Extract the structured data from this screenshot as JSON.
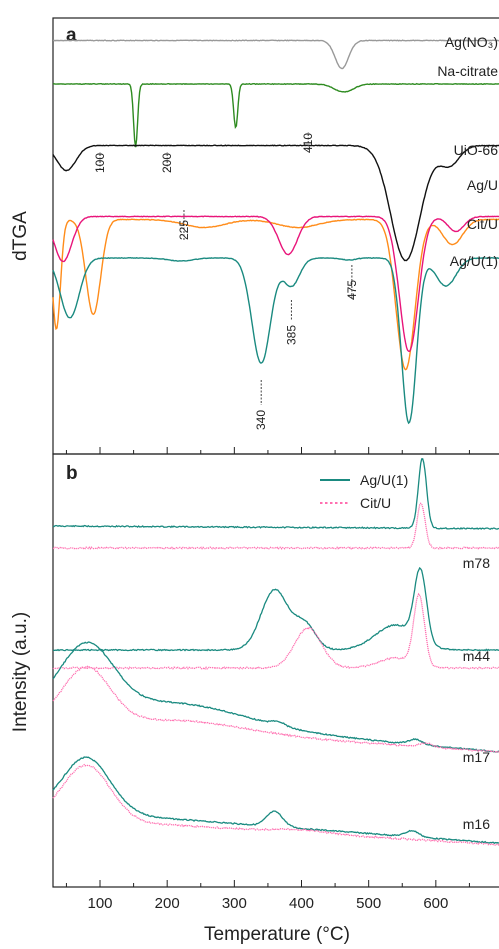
{
  "chart_data": [
    {
      "panel": "a",
      "type": "line",
      "ylabel": "dTGA",
      "xlabel": "",
      "xlim": [
        30,
        700
      ],
      "grid": false,
      "series": [
        {
          "name": "Ag(NO₃)",
          "color": "#999999",
          "baseline": 0.5,
          "peaks": [
            [
              460,
              10,
              28
            ]
          ]
        },
        {
          "name": "Na-citrate",
          "color": "#2e8b20",
          "baseline": 1.0,
          "peaks": [
            [
              153,
              3,
              63
            ],
            [
              302,
              3,
              44
            ],
            [
              463,
              14,
              8
            ]
          ]
        },
        {
          "name": "UiO-66",
          "color": "#111111",
          "baseline": -2.5,
          "peaks": [
            [
              50,
              14,
              25
            ],
            [
              555,
              22,
              115
            ],
            [
              620,
              15,
              20
            ]
          ]
        },
        {
          "name": "Ag/U",
          "color": "#ff8c1a",
          "baseline": -7.5,
          "peaks": [
            [
              35,
              6,
              110
            ],
            [
              90,
              11,
              95
            ],
            [
              255,
              30,
              8
            ],
            [
              395,
              30,
              8
            ],
            [
              555,
              14,
              150
            ],
            [
              625,
              15,
              25
            ]
          ]
        },
        {
          "name": "Cit/U",
          "color": "#e8157a",
          "baseline": -3.5,
          "peaks": [
            [
              45,
              13,
              45
            ],
            [
              380,
              14,
              38
            ],
            [
              560,
              14,
              135
            ],
            [
              630,
              12,
              15
            ]
          ]
        },
        {
          "name": "Ag/U(1)",
          "color": "#1a8a80",
          "baseline": -5.0,
          "peaks": [
            [
              55,
              14,
              60
            ],
            [
              220,
              18,
              3
            ],
            [
              340,
              14,
              105
            ],
            [
              385,
              12,
              28
            ],
            [
              470,
              10,
              2
            ],
            [
              560,
              11,
              165
            ],
            [
              615,
              15,
              28
            ]
          ]
        }
      ],
      "annotations": [
        {
          "text": "100",
          "x": 100
        },
        {
          "text": "200",
          "x": 200
        },
        {
          "text": "410",
          "x": 410
        },
        {
          "text": "225",
          "x": 225
        },
        {
          "text": "385",
          "x": 385
        },
        {
          "text": "475",
          "x": 475
        },
        {
          "text": "340",
          "x": 340
        }
      ]
    },
    {
      "panel": "b",
      "type": "line",
      "ylabel": "Intensity (a.u.)",
      "xlabel": "Temperature (°C)",
      "xlim": [
        30,
        700
      ],
      "x_ticks": [
        100,
        200,
        300,
        400,
        500,
        600
      ],
      "grid": false,
      "legend": {
        "position": "top-right",
        "entries": [
          "Ag/U(1)",
          "Cit/U"
        ]
      },
      "series_styles": {
        "Ag/U(1)": {
          "color": "#1a8a80",
          "dash": "solid"
        },
        "Cit/U": {
          "color": "#ff6fb0",
          "dash": "dotted"
        }
      },
      "groups": [
        {
          "label": "m78",
          "traces": [
            {
              "name": "Ag/U(1)",
              "baseline": 0,
              "slope": -0.004,
              "peaks": [
                [
                  580,
                  6,
                  70
                ]
              ]
            },
            {
              "name": "Cit/U",
              "baseline": 0,
              "slope": 0,
              "peaks": [
                [
                  578,
                  6,
                  45
                ]
              ]
            }
          ]
        },
        {
          "label": "m44",
          "traces": [
            {
              "name": "Ag/U(1)",
              "baseline": 0,
              "slope": 0,
              "peaks": [
                [
                  360,
                  20,
                  60
                ],
                [
                  405,
                  16,
                  25
                ],
                [
                  540,
                  30,
                  25
                ],
                [
                  577,
                  9,
                  70
                ]
              ]
            },
            {
              "name": "Cit/U",
              "baseline": 0,
              "slope": 0,
              "peaks": [
                [
                  410,
                  20,
                  40
                ],
                [
                  540,
                  25,
                  10
                ],
                [
                  575,
                  8,
                  70
                ]
              ]
            }
          ]
        },
        {
          "label": "m17",
          "traces": [
            {
              "name": "Ag/U(1)",
              "baseline": 0,
              "slope": -0.06,
              "peaks": [
                [
                  80,
                  40,
                  65
                ],
                [
                  220,
                  100,
                  20
                ],
                [
                  365,
                  10,
                  4
                ],
                [
                  570,
                  10,
                  5
                ]
              ]
            },
            {
              "name": "Cit/U",
              "baseline": 0,
              "slope": -0.045,
              "peaks": [
                [
                  80,
                  35,
                  55
                ],
                [
                  230,
                  90,
                  10
                ],
                [
                  585,
                  10,
                  4
                ]
              ]
            }
          ]
        },
        {
          "label": "m16",
          "traces": [
            {
              "name": "Ag/U(1)",
              "baseline": 0,
              "slope": -0.05,
              "peaks": [
                [
                  80,
                  35,
                  55
                ],
                [
                  360,
                  12,
                  15
                ],
                [
                  565,
                  10,
                  6
                ]
              ]
            },
            {
              "name": "Cit/U",
              "baseline": 0,
              "slope": -0.04,
              "peaks": [
                [
                  80,
                  35,
                  55
                ],
                [
                  400,
                  40,
                  3
                ]
              ]
            }
          ]
        }
      ]
    }
  ]
}
